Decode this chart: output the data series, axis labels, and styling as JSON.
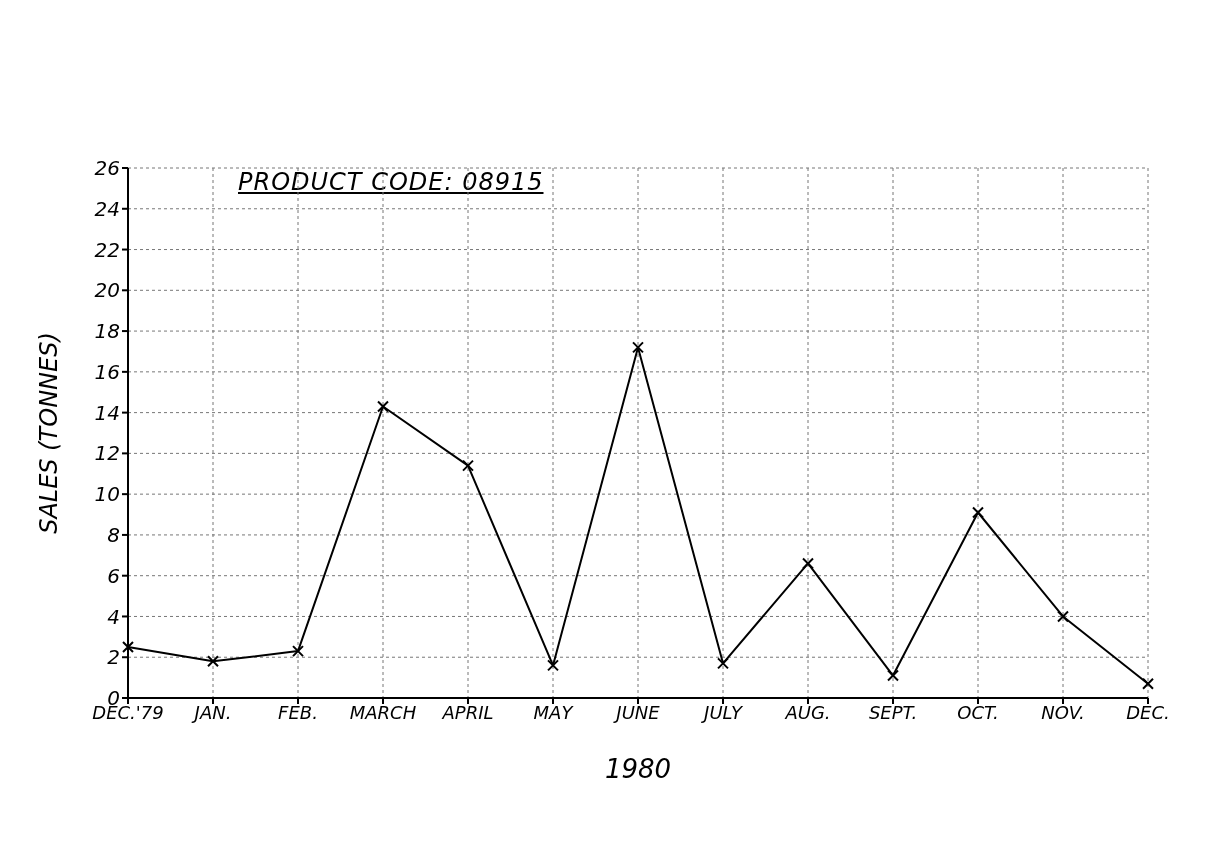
{
  "chart_data": {
    "type": "line",
    "title": "PRODUCT CODE: 08915",
    "xlabel": "1980",
    "ylabel": "SALES (TONNES)",
    "categories": [
      "DEC.'79",
      "JAN.",
      "FEB.",
      "MARCH",
      "APRIL",
      "MAY",
      "JUNE",
      "JULY",
      "AUG.",
      "SEPT.",
      "OCT.",
      "NOV.",
      "DEC."
    ],
    "series": [
      {
        "color": "#000000",
        "values": [
          2.5,
          1.8,
          2.3,
          14.3,
          11.4,
          1.6,
          17.2,
          1.7,
          6.6,
          1.1,
          9.1,
          4.0,
          0.7
        ]
      }
    ],
    "ylim": [
      0,
      26
    ],
    "yticks": [
      0,
      2,
      4,
      6,
      8,
      10,
      12,
      14,
      16,
      18,
      20,
      22,
      24,
      26
    ],
    "grid": true,
    "marker": "cross",
    "line_style": "solid"
  }
}
